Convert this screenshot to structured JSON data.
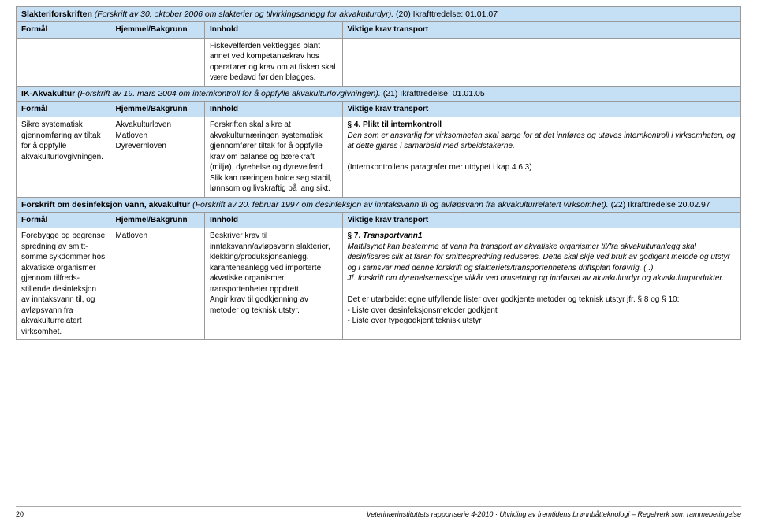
{
  "section1": {
    "title_prefix": "Slakteriforskriften",
    "title_italic": "(Forskrift av 30. oktober 2006 om slakterier og tilvirkingsanlegg for akvakulturdyr).",
    "title_suffix": " (20) Ikrafttredelse: 01.01.07",
    "headers": {
      "c1": "Formål",
      "c2": "Hjemmel/Bakgrunn",
      "c3": "Innhold",
      "c4": "Viktige krav transport"
    },
    "row": {
      "c1": "",
      "c2": "",
      "c3": "Fiskevelferden vekt­legges blant annet ved kompetansekrav hos operatører og krav om at fisken skal være bedøvd før den bløgges.",
      "c4": ""
    }
  },
  "section2": {
    "title_prefix": "IK-Akvakultur",
    "title_italic": "(Forskrift av 19. mars 2004 om internkontroll for å oppfylle akvakulturlovgivningen).",
    "title_suffix": " (21) Ikrafttredelse: 01.01.05",
    "headers": {
      "c1": "Formål",
      "c2": "Hjemmel/Bakgrunn",
      "c3": "Innhold",
      "c4": "Viktige krav transport"
    },
    "row": {
      "c1": "Sikre systematisk gjennomføring av tiltak for å oppfylle akvakultur­lovgivningen.",
      "c2": "Akvakulturloven\nMatloven\nDyrevernloven",
      "c3": "Forskriften skal sikre at akvakulturnæringen systematisk gjennom­fører tiltak for å oppfylle krav om balanse og bærekraft (miljø), dyre­helse og dyrevelferd. Slik kan næringen holde seg stabil, lønnsom og livs­kraftig på lang sikt.",
      "c4_para_label": "§ 4.",
      "c4_para_heading": "Plikt til internkontroll",
      "c4_body1": "Den som er ansvarlig for virksomheten skal sørge for at det innføres og utøves internkontroll i virksomheten, og at dette gjøres i samarbeid med arbeidstakerne.",
      "c4_body2": "(Internkontrollens paragrafer mer utdypet i kap.4.6.3)"
    }
  },
  "section3": {
    "title_prefix": "Forskrift om desinfeksjon vann, akvakultur",
    "title_italic": "(Forskrift av 20. februar 1997 om desinfeksjon av inntaksvann til og avløpsvann fra akvakulturrelatert virksomhet).",
    "title_suffix": " (22) Ikrafttredelse 20.02.97",
    "headers": {
      "c1": "Formål",
      "c2": "Hjemmel/Bakgrunn",
      "c3": "Innhold",
      "c4": "Viktige krav transport"
    },
    "row": {
      "c1": "Forebygge og begrense spre­dning av smitt­somme sykdommer hos akvatiske organismer gjennom tilfreds­stillende des­infeksjon av inntaksvann til, og avløpsvann fra akvakulturrelatert virksomhet.",
      "c2": "Matloven",
      "c3": "Beskriver krav til inntaksvann/avløpsvann slakterier, klekking/produksjonsanlegg, karanteneanlegg ved importerte akvatiske organismer, transportenheter oppdrett.\nAngir krav til godkjenning av metoder og teknisk utstyr.",
      "c4_para_label": "§ 7.",
      "c4_para_heading": "Transportvann1",
      "c4_body1_a": "Mattilsynet kan bestemme at vann fra transport av akvatiske organismer til/fra akvakulturanlegg skal desinfiseres slik at faren for smittespredning reduseres. Dette skal skje ved bruk av godkjent metode og utstyr og i samsvar med denne forskrift og slakteriets/transportenhetens driftsplan forøvrig. (..)",
      "c4_body1_b": "Jf. forskrift om dyrehelsemessige vilkår ved omsetning og innførsel av akvakulturdyr og akvakulturprodukter.",
      "c4_body2": "Det er utarbeidet egne utfyllende lister over godkjente metoder og teknisk utstyr jfr. § 8 og § 10:",
      "c4_list1": "- Liste over desinfeksjonsmetoder godkjent",
      "c4_list2": "- Liste over typegodkjent teknisk utstyr"
    }
  },
  "footer": {
    "page": "20",
    "source": "Veterinærinstituttets rapportserie 4-2010 · Utvikling av fremtidens brønnbåtteknologi – Regelverk som rammebetingelse"
  }
}
